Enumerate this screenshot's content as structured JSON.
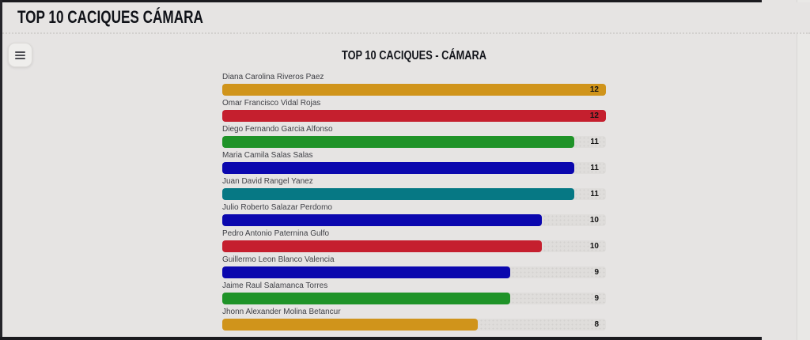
{
  "header": {
    "title": "TOP 10 CACIQUES CÁMARA"
  },
  "toolbar": {
    "menu_button_icon": "hamburger-menu-icon"
  },
  "chart": {
    "title": "TOP 10 CACIQUES - CÁMARA"
  },
  "chart_data": {
    "type": "bar",
    "orientation": "horizontal",
    "title": "TOP 10 CACIQUES - CÁMARA",
    "categories": [
      "Diana Carolina Riveros Paez",
      "Omar Francisco Vidal Rojas",
      "Diego Fernando Garcia Alfonso",
      "Maria Camila Salas Salas",
      "Juan David Rangel Yanez",
      "Julio Roberto Salazar Perdomo",
      "Pedro Antonio Paternina Gulfo",
      "Guillermo Leon Blanco Valencia",
      "Jaime Raul Salamanca Torres",
      "Jhonn Alexander Molina Betancur"
    ],
    "values": [
      12,
      12,
      11,
      11,
      11,
      10,
      10,
      9,
      9,
      8
    ],
    "bar_colors": [
      "#d0941b",
      "#c51f2e",
      "#1f9328",
      "#0b07ae",
      "#067884",
      "#0b07ae",
      "#c51f2e",
      "#0b07ae",
      "#1f9328",
      "#d0941b"
    ],
    "xlim": [
      0,
      12
    ],
    "value_labels_shown": true,
    "axis_ticks_shown": false,
    "gridlines": false,
    "legend": "none"
  },
  "colors": {
    "page_bg": "#e6e4e3",
    "frame": "#1b1b1f",
    "track": "#dfdddb",
    "title_text": "#101218",
    "label_text": "#3f4046",
    "value_text": "#141414"
  }
}
